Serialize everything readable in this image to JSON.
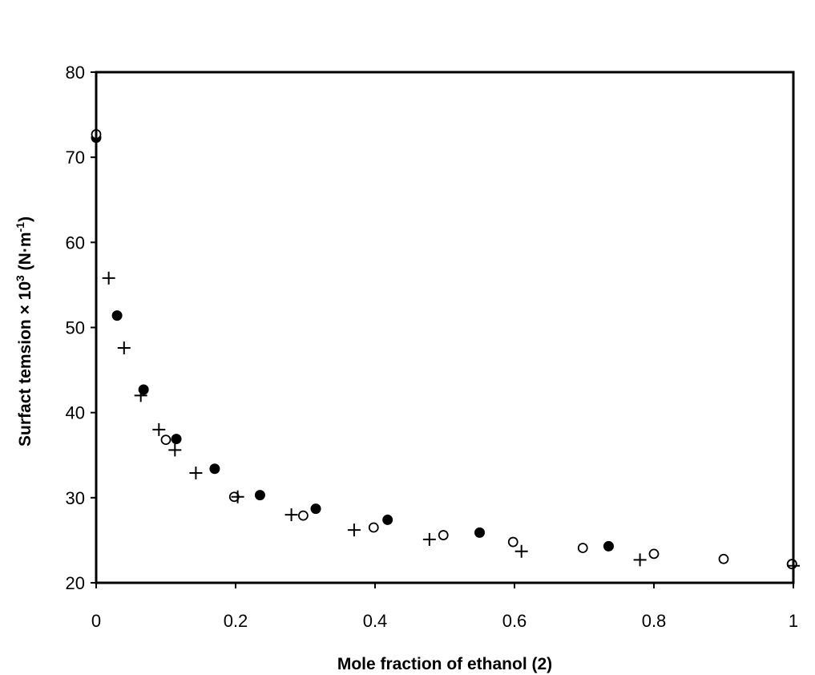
{
  "chart_data": {
    "type": "scatter",
    "title": "",
    "xlabel": "Mole fraction of ethanol (2)",
    "ylabel": {
      "main": "Surfact temsion × 10",
      "sup1": "3",
      "unit_open": " (N·m",
      "sup2": "-1",
      "unit_close": ")"
    },
    "xlim": [
      0,
      1
    ],
    "ylim": [
      20,
      80
    ],
    "xticks": [
      0,
      0.2,
      0.4,
      0.6,
      0.8,
      1
    ],
    "xtick_labels": [
      "0",
      "0.2",
      "0.4",
      "0.6",
      "0.8",
      "1"
    ],
    "yticks": [
      20,
      30,
      40,
      50,
      60,
      70,
      80
    ],
    "ytick_labels": [
      "20",
      "30",
      "40",
      "50",
      "60",
      "70",
      "80"
    ],
    "grid": false,
    "legend": "none",
    "series": [
      {
        "marker": "filled-circle",
        "color": "#000000",
        "points": [
          {
            "x": 0.0,
            "y": 72.3
          },
          {
            "x": 0.03,
            "y": 51.4
          },
          {
            "x": 0.068,
            "y": 42.7
          },
          {
            "x": 0.115,
            "y": 36.9
          },
          {
            "x": 0.17,
            "y": 33.4
          },
          {
            "x": 0.235,
            "y": 30.3
          },
          {
            "x": 0.315,
            "y": 28.7
          },
          {
            "x": 0.418,
            "y": 27.4
          },
          {
            "x": 0.55,
            "y": 25.9
          },
          {
            "x": 0.735,
            "y": 24.3
          },
          {
            "x": 0.998,
            "y": 22.2
          }
        ]
      },
      {
        "marker": "open-circle",
        "color": "#000000",
        "points": [
          {
            "x": 0.0,
            "y": 72.7
          },
          {
            "x": 0.1,
            "y": 36.8
          },
          {
            "x": 0.198,
            "y": 30.1
          },
          {
            "x": 0.297,
            "y": 27.9
          },
          {
            "x": 0.398,
            "y": 26.5
          },
          {
            "x": 0.498,
            "y": 25.6
          },
          {
            "x": 0.598,
            "y": 24.8
          },
          {
            "x": 0.698,
            "y": 24.1
          },
          {
            "x": 0.8,
            "y": 23.4
          },
          {
            "x": 0.9,
            "y": 22.8
          },
          {
            "x": 0.998,
            "y": 22.2
          }
        ]
      },
      {
        "marker": "plus",
        "color": "#000000",
        "points": [
          {
            "x": 0.018,
            "y": 55.8
          },
          {
            "x": 0.04,
            "y": 47.6
          },
          {
            "x": 0.064,
            "y": 42.0
          },
          {
            "x": 0.09,
            "y": 38.0
          },
          {
            "x": 0.113,
            "y": 35.6
          },
          {
            "x": 0.143,
            "y": 32.9
          },
          {
            "x": 0.203,
            "y": 30.1
          },
          {
            "x": 0.28,
            "y": 28.0
          },
          {
            "x": 0.37,
            "y": 26.2
          },
          {
            "x": 0.478,
            "y": 25.1
          },
          {
            "x": 0.61,
            "y": 23.7
          },
          {
            "x": 0.78,
            "y": 22.7
          },
          {
            "x": 1.0,
            "y": 22.0
          }
        ]
      }
    ]
  }
}
